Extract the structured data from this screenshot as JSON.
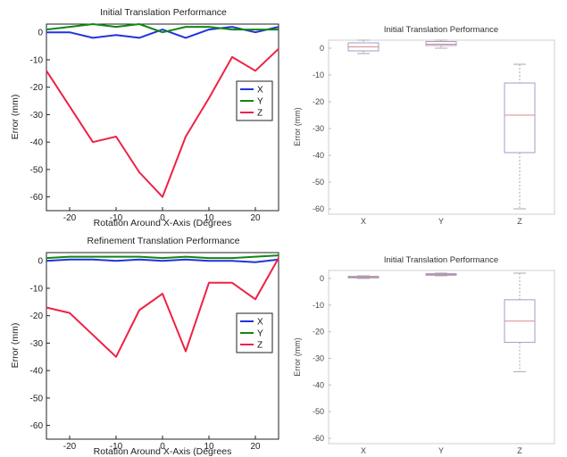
{
  "chart_data": [
    {
      "type": "line",
      "title": "Initial Translation Performance",
      "xlabel": "Rotation Around X-Axis (Degrees",
      "ylabel": "Error (mm)",
      "xlim": [
        -25,
        25
      ],
      "ylim": [
        -65,
        3
      ],
      "xticks": [
        "-20",
        "-10",
        "0",
        "10",
        "20"
      ],
      "xtick_values": [
        -20,
        -10,
        0,
        10,
        20
      ],
      "yticks": [
        "0",
        "-10",
        "-20",
        "-30",
        "-40",
        "-50",
        "-60"
      ],
      "ytick_values": [
        0,
        -10,
        -20,
        -30,
        -40,
        -50,
        -60
      ],
      "grid": false,
      "legend_position": "right",
      "x": [
        -25,
        -20,
        -15,
        -10,
        -5,
        0,
        5,
        10,
        15,
        20,
        25
      ],
      "series": [
        {
          "name": "X",
          "color": "#2233dd",
          "values": [
            0,
            0,
            -2,
            -1,
            -2,
            1,
            -2,
            1,
            2,
            0,
            2
          ]
        },
        {
          "name": "Y",
          "color": "#118811",
          "values": [
            1,
            2,
            3,
            2,
            3,
            0,
            2,
            2,
            1,
            1,
            1
          ]
        },
        {
          "name": "Z",
          "color": "#ee2244",
          "values": [
            -14,
            -27,
            -40,
            -38,
            -51,
            -60,
            -38,
            -24,
            -9,
            -14,
            -6
          ]
        }
      ]
    },
    {
      "type": "box",
      "title": "Initial Translation Performance",
      "ylabel": "Error (mm)",
      "categories": [
        "X",
        "Y",
        "Z"
      ],
      "ylim": [
        -62,
        3
      ],
      "yticks": [
        "0",
        "-10",
        "-20",
        "-30",
        "-40",
        "-50",
        "-60"
      ],
      "ytick_values": [
        0,
        -10,
        -20,
        -30,
        -40,
        -50,
        -60
      ],
      "boxes": [
        {
          "category": "X",
          "min": -2,
          "q1": -1,
          "median": 0.5,
          "q3": 2,
          "max": 3
        },
        {
          "category": "Y",
          "min": 0,
          "q1": 1,
          "median": 1.5,
          "q3": 2.5,
          "max": 3
        },
        {
          "category": "Z",
          "min": -60,
          "q1": -39,
          "median": -25,
          "q3": -13,
          "max": -6
        }
      ]
    },
    {
      "type": "line",
      "title": "Refinement Translation Performance",
      "xlabel": "Rotation Around X-Axis (Degrees",
      "ylabel": "Error (mm)",
      "xlim": [
        -25,
        25
      ],
      "ylim": [
        -65,
        3
      ],
      "xticks": [
        "-20",
        "-10",
        "0",
        "10",
        "20"
      ],
      "xtick_values": [
        -20,
        -10,
        0,
        10,
        20
      ],
      "yticks": [
        "0",
        "-10",
        "-20",
        "-30",
        "-40",
        "-50",
        "-60"
      ],
      "ytick_values": [
        0,
        -10,
        -20,
        -30,
        -40,
        -50,
        -60
      ],
      "grid": false,
      "legend_position": "right",
      "x": [
        -25,
        -20,
        -15,
        -10,
        -5,
        0,
        5,
        10,
        15,
        20,
        25
      ],
      "series": [
        {
          "name": "X",
          "color": "#2233dd",
          "values": [
            0,
            0.5,
            0.5,
            0,
            0.5,
            0,
            0.5,
            0,
            0,
            -0.5,
            0.5
          ]
        },
        {
          "name": "Y",
          "color": "#118811",
          "values": [
            1,
            1.5,
            1.5,
            1.5,
            1.5,
            1,
            1.5,
            1,
            1,
            1.5,
            2
          ]
        },
        {
          "name": "Z",
          "color": "#ee2244",
          "values": [
            -17,
            -19,
            -27,
            -35,
            -18,
            -12,
            -33,
            -8,
            -8,
            -14,
            1
          ]
        }
      ]
    },
    {
      "type": "box",
      "title": "Initial Translation Performance",
      "ylabel": "Error (mm)",
      "categories": [
        "X",
        "Y",
        "Z"
      ],
      "ylim": [
        -62,
        3
      ],
      "yticks": [
        "0",
        "-10",
        "-20",
        "-30",
        "-40",
        "-50",
        "-60"
      ],
      "ytick_values": [
        0,
        -10,
        -20,
        -30,
        -40,
        -50,
        -60
      ],
      "boxes": [
        {
          "category": "X",
          "min": 0,
          "q1": 0.2,
          "median": 0.5,
          "q3": 0.8,
          "max": 1
        },
        {
          "category": "Y",
          "min": 1,
          "q1": 1.2,
          "median": 1.5,
          "q3": 1.8,
          "max": 2
        },
        {
          "category": "Z",
          "min": -35,
          "q1": -24,
          "median": -16,
          "q3": -8,
          "max": 2
        }
      ]
    }
  ]
}
